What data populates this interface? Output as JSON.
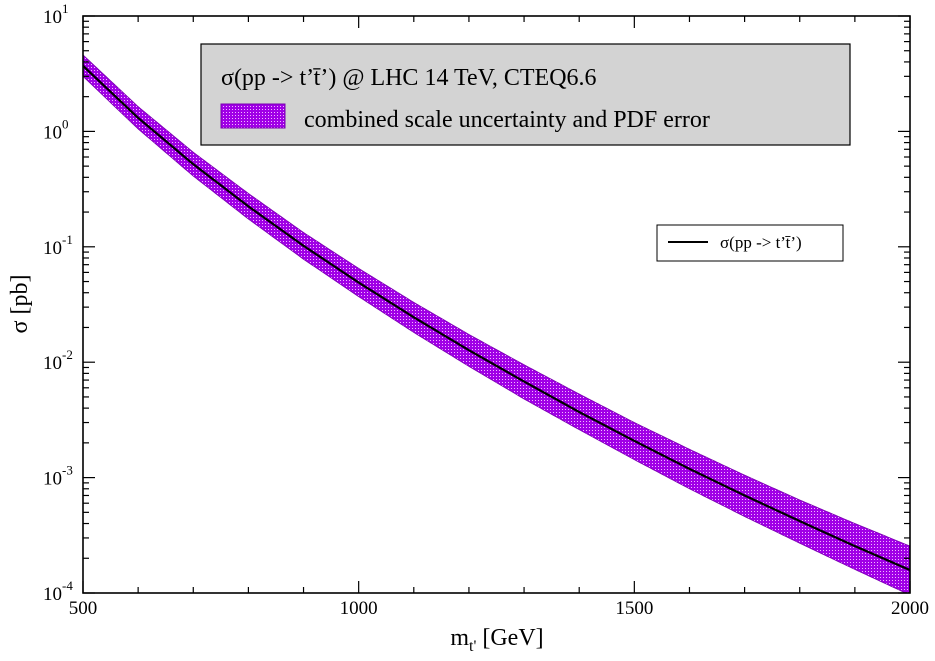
{
  "chart_data": {
    "type": "area",
    "xlabel": "m",
    "xlabel_sub": "t'",
    "xlabel_unit": "[GeV]",
    "ylabel": "σ [pb]",
    "xlim": [
      500,
      2000
    ],
    "ylim": [
      0.0001,
      10
    ],
    "yscale": "log",
    "x_ticks": [
      "500",
      "1000",
      "1500",
      "2000"
    ],
    "y_ticks": [
      {
        "base": "10",
        "exp": "1"
      },
      {
        "base": "10",
        "exp": "0"
      },
      {
        "base": "10",
        "exp": "-1"
      },
      {
        "base": "10",
        "exp": "-2"
      },
      {
        "base": "10",
        "exp": "-3"
      },
      {
        "base": "10",
        "exp": "-4"
      }
    ],
    "grid": false,
    "legend_box": {
      "title": "σ(pp -> t’t̄’) @ LHC 14 TeV, CTEQ6.6",
      "band_label": "combined scale uncertainty and PDF error",
      "placement": "top-center"
    },
    "legend_line": {
      "label": "σ(pp -> t’t̄’)",
      "placement": "right"
    },
    "series": [
      {
        "name": "σ(pp -> t’t̄’)",
        "kind": "line",
        "color": "#000000",
        "x": [
          500,
          600,
          700,
          800,
          900,
          1000,
          1100,
          1200,
          1300,
          1400,
          1500,
          1600,
          1700,
          1800,
          1900,
          2000
        ],
        "y": [
          3.7,
          1.31,
          0.52,
          0.224,
          0.102,
          0.049,
          0.0245,
          0.0127,
          0.0068,
          0.0037,
          0.00208,
          0.00119,
          0.0007,
          0.00042,
          0.000255,
          0.000158
        ]
      },
      {
        "name": "combined scale uncertainty and PDF error",
        "kind": "band",
        "color": "#a000e6",
        "x": [
          500,
          600,
          700,
          800,
          900,
          1000,
          1100,
          1200,
          1300,
          1400,
          1500,
          1600,
          1700,
          1800,
          1900,
          2000
        ],
        "upper": [
          4.6,
          1.64,
          0.66,
          0.29,
          0.133,
          0.065,
          0.033,
          0.0174,
          0.0095,
          0.0053,
          0.003,
          0.00176,
          0.00105,
          0.00064,
          0.0004,
          0.000255
        ],
        "lower": [
          3.0,
          1.05,
          0.41,
          0.174,
          0.078,
          0.037,
          0.0181,
          0.0092,
          0.0048,
          0.0026,
          0.00143,
          0.0008,
          0.00046,
          0.00027,
          0.00016,
          9.6e-05
        ]
      }
    ],
    "colors": {
      "band": "#a000e6",
      "band_dots": "#f2b8ff",
      "line": "#000000",
      "legend_bg": "#d3d3d3"
    }
  }
}
